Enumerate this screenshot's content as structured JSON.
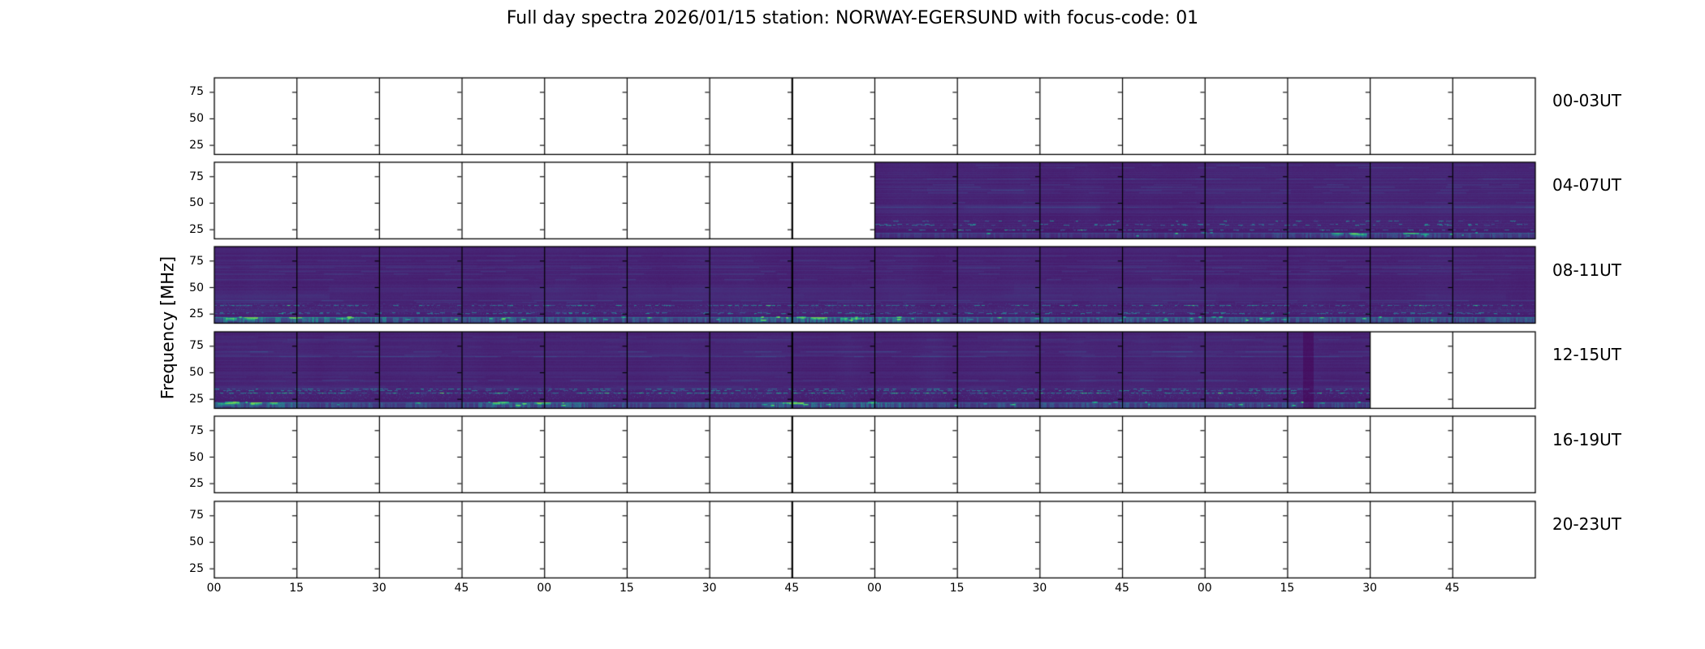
{
  "title": "Full day spectra 2026/01/15 station: NORWAY-EGERSUND with focus-code: 01",
  "chart_data": {
    "type": "heatmap",
    "subtype": "daily-spectrogram-grid",
    "title": "Full day spectra 2026/01/15 station: NORWAY-EGERSUND with focus-code: 01",
    "ylabel": "Frequency [MHz]",
    "y_ticks_mhz": [
      75,
      50,
      25
    ],
    "y_tick_labels": [
      "75",
      "50",
      "25"
    ],
    "ylim_mhz": [
      16.4,
      88.6
    ],
    "x_tick_labels": [
      "00",
      "15",
      "30",
      "45",
      "00",
      "15",
      "30",
      "45",
      "00",
      "15",
      "30",
      "45",
      "00",
      "15",
      "30",
      "45"
    ],
    "panels_per_row": 16,
    "minutes_per_panel": 15,
    "hours_per_row": 4,
    "legend": "none",
    "grid": "off",
    "background_color": "#ffffff",
    "axis_color": "#000000",
    "empty_panel_color": "#ffffff",
    "colormap": "viridis",
    "colormap_stops": [
      [
        0.0,
        "#440154"
      ],
      [
        0.13,
        "#472777"
      ],
      [
        0.25,
        "#3e4989"
      ],
      [
        0.38,
        "#31688e"
      ],
      [
        0.5,
        "#26828e"
      ],
      [
        0.62,
        "#1f9e89"
      ],
      [
        0.75,
        "#35b779"
      ],
      [
        0.88,
        "#6ece58"
      ],
      [
        1.0,
        "#fde725"
      ]
    ],
    "rows": [
      {
        "label": "00-03UT",
        "coverage": [],
        "seed": 101,
        "activity": 0
      },
      {
        "label": "04-07UT",
        "coverage": [
          [
            0.5,
            1.0
          ]
        ],
        "seed": 40711,
        "activity": 0.45,
        "bottom_gain": 0.42,
        "dash_density": 0.18,
        "blob_rate": 10,
        "hot_spots": [
          [
            0.8,
            1.0
          ]
        ],
        "dark_streaks": []
      },
      {
        "label": "08-11UT",
        "coverage": [
          [
            0.0,
            1.0
          ]
        ],
        "seed": 81131,
        "activity": 1.0,
        "bottom_gain": 1.0,
        "dash_density": 0.34,
        "blob_rate": 26,
        "hot_spots": [
          [
            0.0,
            0.13
          ],
          [
            0.4,
            0.52
          ]
        ],
        "dark_streaks": []
      },
      {
        "label": "12-15UT",
        "coverage": [
          [
            0.0,
            0.875
          ]
        ],
        "seed": 121513,
        "activity": 0.9,
        "bottom_gain": 0.8,
        "dash_density": 0.42,
        "blob_rate": 18,
        "hot_spots": [
          [
            0.0,
            0.07
          ],
          [
            0.2,
            0.28
          ],
          [
            0.42,
            0.52
          ]
        ],
        "dark_streaks": [
          [
            0.824,
            0.832
          ]
        ]
      },
      {
        "label": "16-19UT",
        "coverage": [],
        "seed": 105,
        "activity": 0
      },
      {
        "label": "20-23UT",
        "coverage": [],
        "seed": 106,
        "activity": 0
      }
    ]
  }
}
